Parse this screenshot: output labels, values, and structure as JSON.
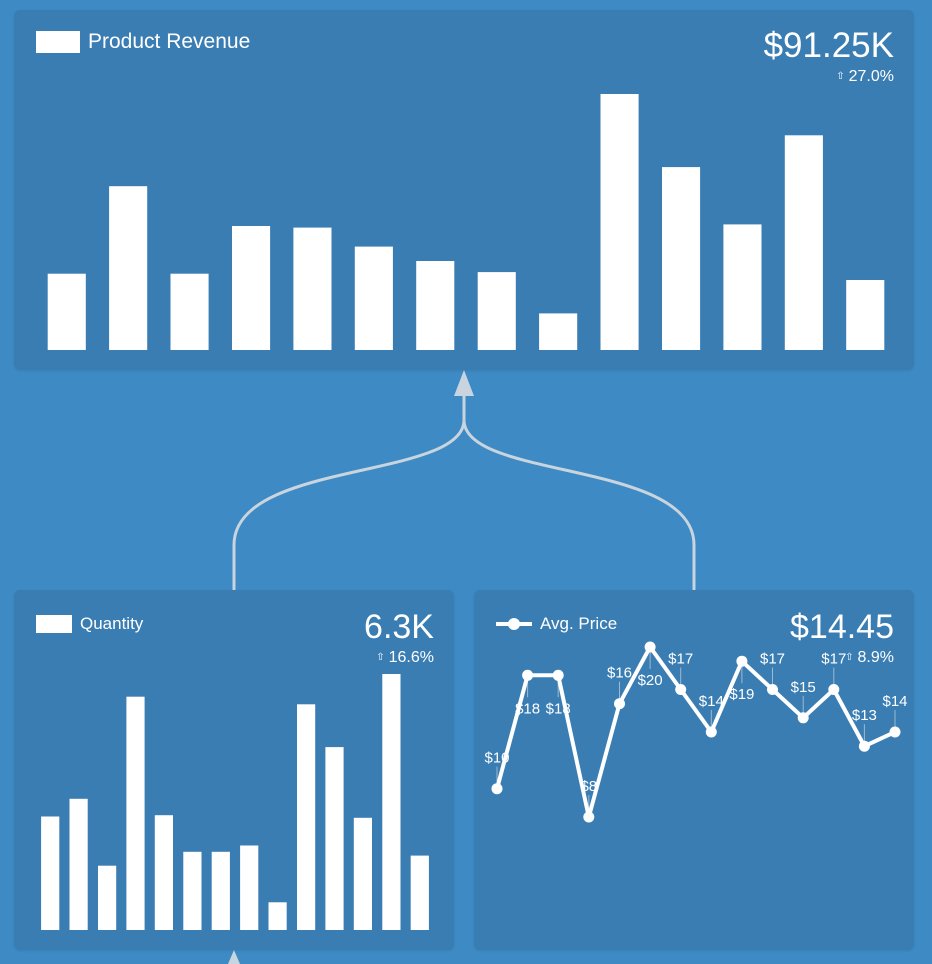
{
  "colors": {
    "background": "#3d8ac4",
    "panel": "#3a7db3",
    "mark": "#ffffff",
    "connector": "#c8d4de",
    "drop_line": "#9fb9cf"
  },
  "revenue": {
    "legend_label": "Product Revenue",
    "kpi_value": "$91.25K",
    "kpi_change": "27.0%",
    "change_icon": "up-arrow-icon"
  },
  "quantity": {
    "legend_label": "Quantity",
    "kpi_value": "6.3K",
    "kpi_change": "16.6%",
    "change_icon": "up-arrow-icon"
  },
  "price": {
    "legend_label": "Avg. Price",
    "kpi_value": "$14.45",
    "kpi_change": "8.9%",
    "change_icon": "up-arrow-icon"
  },
  "chart_data": [
    {
      "type": "bar",
      "name": "Product Revenue",
      "values": [
        4.8,
        10.3,
        4.8,
        7.8,
        7.7,
        6.5,
        5.6,
        4.9,
        2.3,
        16.1,
        11.5,
        7.9,
        13.5,
        4.4
      ],
      "ylim": [
        0,
        16.1
      ]
    },
    {
      "type": "bar",
      "name": "Quantity",
      "values": [
        450,
        520,
        255,
        925,
        455,
        310,
        310,
        335,
        110,
        895,
        725,
        445,
        1015,
        295
      ],
      "ylim": [
        0,
        1015
      ]
    },
    {
      "type": "line",
      "name": "Avg. Price",
      "values": [
        10,
        18,
        18,
        8,
        16,
        20,
        17,
        14,
        19,
        17,
        15,
        17,
        13,
        14
      ],
      "data_labels": [
        "$10",
        "$18",
        "$18",
        "$8",
        "$16",
        "$20",
        "$17",
        "$14",
        "$19",
        "$17",
        "$15",
        "$17",
        "$13",
        "$14"
      ],
      "label_positions": [
        "above",
        "below",
        "below",
        "above",
        "above",
        "below",
        "above",
        "above",
        "below",
        "above",
        "above",
        "above",
        "above",
        "above"
      ]
    }
  ]
}
